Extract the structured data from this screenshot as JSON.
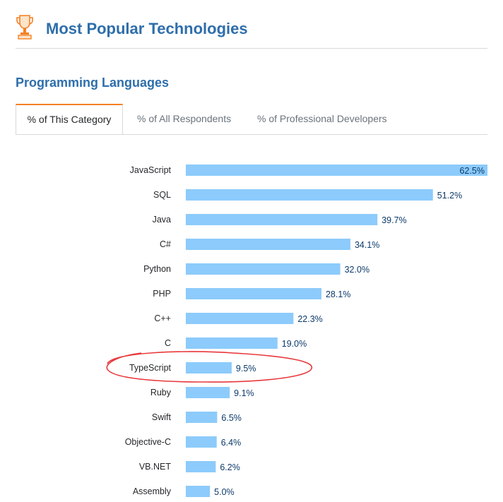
{
  "page": {
    "title": "Most Popular Technologies",
    "section_title": "Programming Languages",
    "icon": "trophy-icon",
    "accent_color": "#2e6eab",
    "tab_accent_color": "#f48024"
  },
  "tabs": [
    {
      "label": "% of This Category",
      "active": true
    },
    {
      "label": "% of All Respondents",
      "active": false
    },
    {
      "label": "% of Professional Developers",
      "active": false
    }
  ],
  "annotation": {
    "type": "hand-drawn ellipse",
    "target": "TypeScript",
    "color": "#e8383b"
  },
  "chart_data": {
    "type": "bar",
    "orientation": "horizontal",
    "categories": [
      "JavaScript",
      "SQL",
      "Java",
      "C#",
      "Python",
      "PHP",
      "C++",
      "C",
      "TypeScript",
      "Ruby",
      "Swift",
      "Objective-C",
      "VB.NET",
      "Assembly"
    ],
    "values": [
      62.5,
      51.2,
      39.7,
      34.1,
      32.0,
      28.1,
      22.3,
      19.0,
      9.5,
      9.1,
      6.5,
      6.4,
      6.2,
      5.0
    ],
    "value_labels": [
      "62.5%",
      "51.2%",
      "39.7%",
      "34.1%",
      "32.0%",
      "28.1%",
      "22.3%",
      "19.0%",
      "9.5%",
      "9.1%",
      "6.5%",
      "6.4%",
      "6.2%",
      "5.0%"
    ],
    "unit": "%",
    "xlim": [
      0,
      62.5
    ],
    "bar_color": "#8ccbfb",
    "grid": false,
    "legend": "none"
  }
}
